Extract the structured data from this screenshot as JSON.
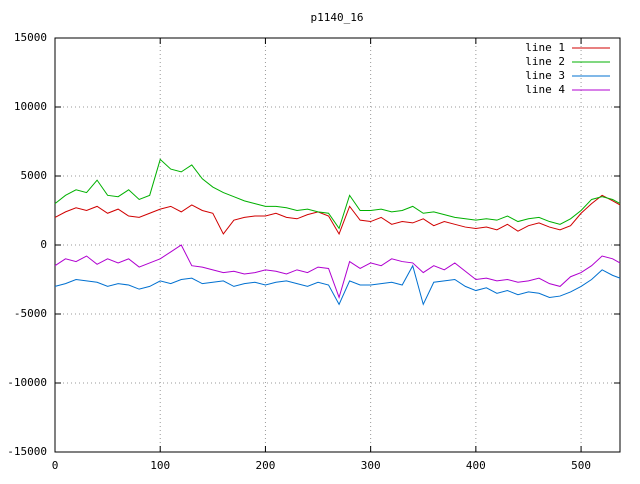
{
  "chart_data": {
    "type": "line",
    "title": "p1140_16",
    "x": [
      0,
      10,
      20,
      30,
      40,
      50,
      60,
      70,
      80,
      90,
      100,
      110,
      120,
      130,
      140,
      150,
      160,
      170,
      180,
      190,
      200,
      210,
      220,
      230,
      240,
      250,
      260,
      270,
      280,
      290,
      300,
      310,
      320,
      330,
      340,
      350,
      360,
      370,
      380,
      390,
      400,
      410,
      420,
      430,
      440,
      450,
      460,
      470,
      480,
      490,
      500,
      510,
      520,
      530,
      537
    ],
    "series": [
      {
        "name": "line 1",
        "color": "#d00000",
        "values": [
          2000,
          2400,
          2700,
          2500,
          2800,
          2300,
          2600,
          2100,
          2000,
          2300,
          2600,
          2800,
          2400,
          2900,
          2500,
          2300,
          800,
          1800,
          2000,
          2100,
          2100,
          2300,
          2000,
          1900,
          2200,
          2400,
          2100,
          800,
          2800,
          1800,
          1700,
          2000,
          1500,
          1700,
          1600,
          1900,
          1400,
          1700,
          1500,
          1300,
          1200,
          1300,
          1100,
          1500,
          1000,
          1400,
          1600,
          1300,
          1100,
          1400,
          2300,
          3000,
          3600,
          3200,
          2900
        ]
      },
      {
        "name": "line 2",
        "color": "#00b000",
        "values": [
          3000,
          3600,
          4000,
          3800,
          4700,
          3600,
          3500,
          4000,
          3300,
          3600,
          6200,
          5500,
          5300,
          5800,
          4800,
          4200,
          3800,
          3500,
          3200,
          3000,
          2800,
          2800,
          2700,
          2500,
          2600,
          2400,
          2300,
          1200,
          3600,
          2500,
          2500,
          2600,
          2400,
          2500,
          2800,
          2300,
          2400,
          2200,
          2000,
          1900,
          1800,
          1900,
          1800,
          2100,
          1700,
          1900,
          2000,
          1700,
          1500,
          1900,
          2500,
          3300,
          3500,
          3300,
          3000
        ]
      },
      {
        "name": "line 3",
        "color": "#0070d0",
        "values": [
          -3000,
          -2800,
          -2500,
          -2600,
          -2700,
          -3000,
          -2800,
          -2900,
          -3200,
          -3000,
          -2600,
          -2800,
          -2500,
          -2400,
          -2800,
          -2700,
          -2600,
          -3000,
          -2800,
          -2700,
          -2900,
          -2700,
          -2600,
          -2800,
          -3000,
          -2700,
          -2900,
          -4300,
          -2600,
          -2900,
          -2900,
          -2800,
          -2700,
          -2900,
          -1500,
          -4300,
          -2700,
          -2600,
          -2500,
          -3000,
          -3300,
          -3100,
          -3500,
          -3300,
          -3600,
          -3400,
          -3500,
          -3800,
          -3700,
          -3400,
          -3000,
          -2500,
          -1800,
          -2200,
          -2400
        ]
      },
      {
        "name": "line 4",
        "color": "#b000d0",
        "values": [
          -1500,
          -1000,
          -1200,
          -800,
          -1400,
          -1000,
          -1300,
          -1000,
          -1600,
          -1300,
          -1000,
          -500,
          0,
          -1500,
          -1600,
          -1800,
          -2000,
          -1900,
          -2100,
          -2000,
          -1800,
          -1900,
          -2100,
          -1800,
          -2000,
          -1600,
          -1700,
          -3800,
          -1200,
          -1700,
          -1300,
          -1500,
          -1000,
          -1200,
          -1300,
          -2000,
          -1500,
          -1800,
          -1300,
          -1900,
          -2500,
          -2400,
          -2600,
          -2500,
          -2700,
          -2600,
          -2400,
          -2800,
          -3000,
          -2300,
          -2000,
          -1500,
          -800,
          -1000,
          -1300
        ]
      }
    ],
    "xlim": [
      0,
      537
    ],
    "xticks": [
      0,
      100,
      200,
      300,
      400,
      500
    ],
    "ylim": [
      -15000,
      15000
    ],
    "yticks": [
      -15000,
      -10000,
      -5000,
      0,
      5000,
      10000,
      15000
    ],
    "grid": true,
    "legend": "top-right"
  }
}
